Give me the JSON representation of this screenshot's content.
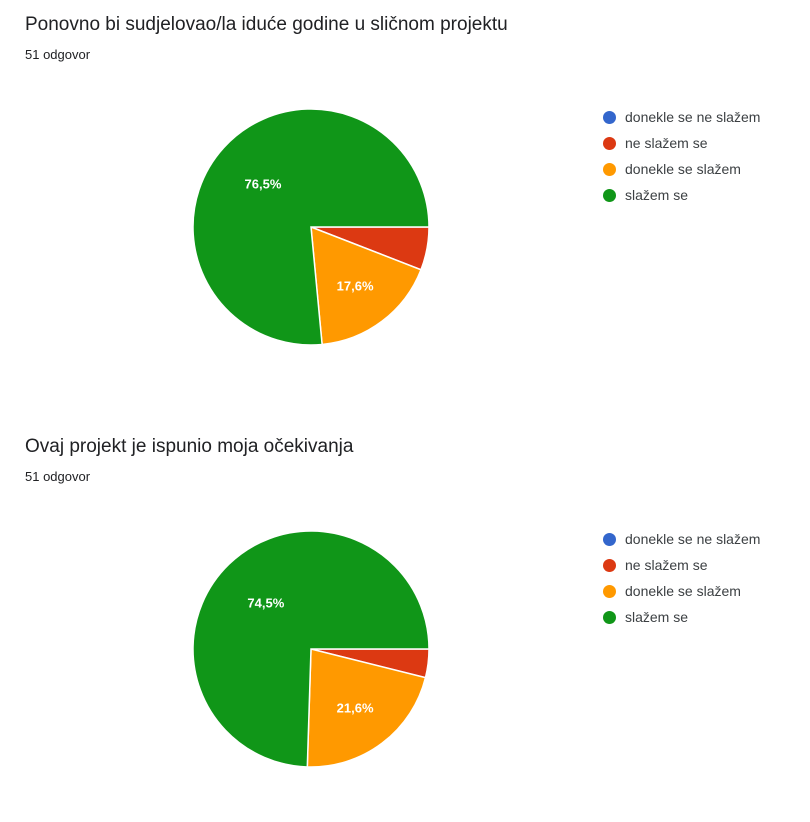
{
  "chart_data": [
    {
      "type": "pie",
      "title": "Ponovno bi sudjelovao/la iduće godine u sličnom projektu",
      "subtitle": "51 odgovor",
      "categories": [
        "donekle se ne slažem",
        "ne slažem se",
        "donekle se slažem",
        "slažem se"
      ],
      "values": [
        0,
        5.9,
        17.6,
        76.5
      ],
      "data_labels": [
        "",
        "",
        "17,6%",
        "76,5%"
      ],
      "colors": [
        "#3366cc",
        "#dc3912",
        "#ff9900",
        "#109618"
      ],
      "legend_position": "right"
    },
    {
      "type": "pie",
      "title": "Ovaj projekt je ispunio moja očekivanja",
      "subtitle": "51 odgovor",
      "categories": [
        "donekle se ne slažem",
        "ne slažem se",
        "donekle se slažem",
        "slažem se"
      ],
      "values": [
        0,
        3.9,
        21.6,
        74.5
      ],
      "data_labels": [
        "",
        "",
        "21,6%",
        "74,5%"
      ],
      "colors": [
        "#3366cc",
        "#dc3912",
        "#ff9900",
        "#109618"
      ],
      "legend_position": "right"
    }
  ]
}
